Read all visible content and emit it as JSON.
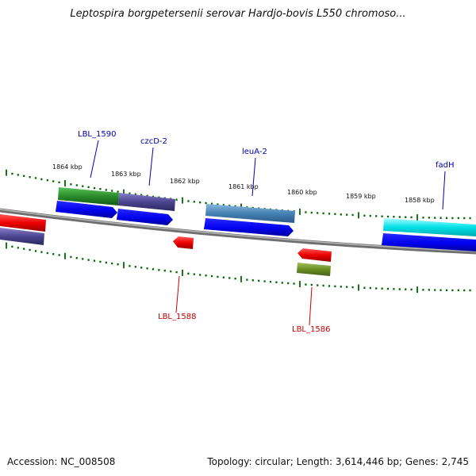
{
  "title": "Leptospira borgpetersenii serovar Hardjo-bovis L550 chromoso...",
  "footer": {
    "accession": "Accession: NC_008508",
    "stats": "Topology: circular; Length: 3,614,446 bp; Genes: 2,745"
  },
  "ruler": [
    "1864 kbp",
    "1863 kbp",
    "1862 kbp",
    "1861 kbp",
    "1860 kbp",
    "1859 kbp",
    "1858 kbp"
  ],
  "gene_labels": {
    "LBL_1590": "LBL_1590",
    "czcD_2": "czcD-2",
    "leuA_2": "leuA-2",
    "fadH": "fadH",
    "LBL_1588": "LBL_1588",
    "LBL_1586": "LBL_1586"
  },
  "colors": {
    "forward_label": "#0000aa",
    "reverse_label": "#cc0000",
    "backbone": "#888888",
    "tick": "#006600"
  }
}
